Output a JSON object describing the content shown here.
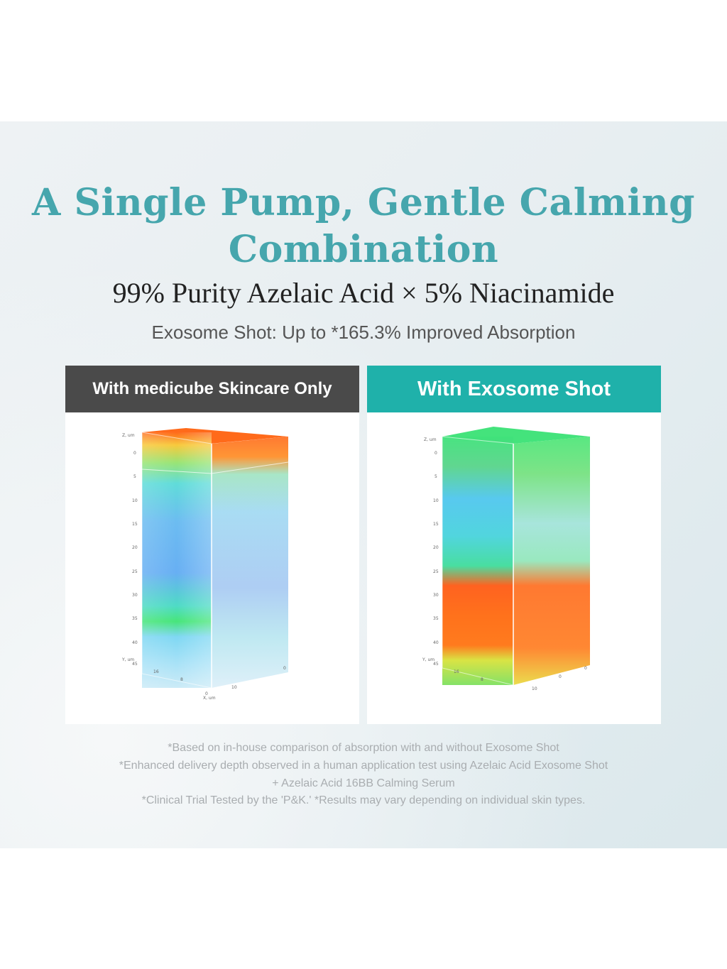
{
  "headline": {
    "line1": "A Single Pump, Gentle Calming",
    "line2": "Combination"
  },
  "formula": "99% Purity Azelaic Acid × 5% Niacinamide",
  "subheadline": "Exosome Shot: Up to *165.3% Improved Absorption",
  "comparison": {
    "left": {
      "label": "With medicube Skincare Only",
      "axis": {
        "z_title": "Z, um",
        "z_ticks": [
          "0",
          "5",
          "10",
          "15",
          "20",
          "25",
          "30",
          "35",
          "40",
          "45"
        ],
        "y_title": "Y, um",
        "x_title": "X, um",
        "base_ticks": [
          "16",
          "8",
          "0",
          "10",
          "0"
        ]
      }
    },
    "right": {
      "label": "With Exosome Shot",
      "axis": {
        "z_title": "Z, um",
        "z_ticks": [
          "0",
          "5",
          "10",
          "15",
          "20",
          "25",
          "30",
          "35",
          "40",
          "45"
        ],
        "y_title": "Y, um",
        "base_ticks": [
          "16",
          "8",
          "10",
          "0",
          "0"
        ]
      }
    }
  },
  "footnotes": [
    "*Based on in-house comparison of absorption with and without Exosome Shot",
    "*Enhanced delivery depth observed in a human application test using Azelaic Acid Exosome Shot",
    "+ Azelaic Acid 16BB Calming Serum",
    "*Clinical Trial Tested by the 'P&K.' *Results may vary depending on individual skin types."
  ],
  "colors": {
    "headline": "#46a6ad",
    "left_header": "#4a4a4a",
    "right_header": "#1fb1aa"
  }
}
